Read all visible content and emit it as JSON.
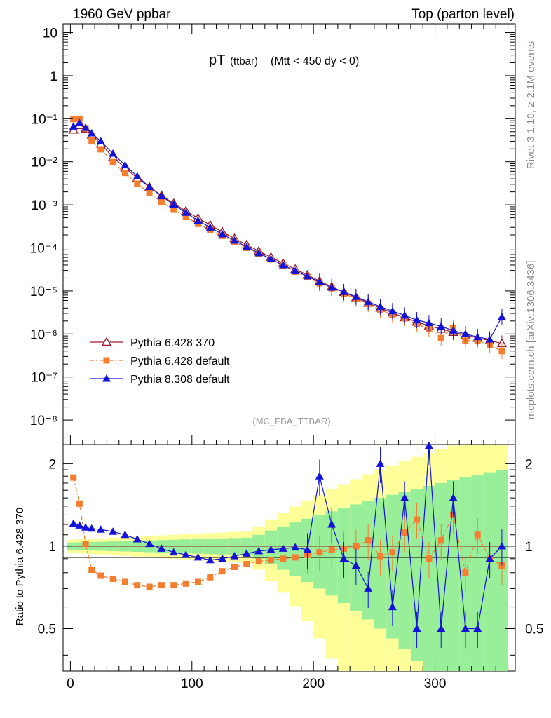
{
  "header": {
    "left": "1960 GeV ppbar",
    "right": "Top (parton level)"
  },
  "side_labels": {
    "rivet": "Rivet 3.1.10, ≥ 2.1M events",
    "mcplots": "mcplots.cern.ch [arXiv:1306.3436]"
  },
  "chart_data": {
    "type": "scatter",
    "title": {
      "main": "pT",
      "sub": "(ttbar)",
      "cut": "(Mtt < 450 dy < 0)"
    },
    "analysis_tag": "(MC_FBA_TTBAR)",
    "log_y": true,
    "grid": false,
    "legend_placement": "bottom-left",
    "xlim": [
      -6,
      366
    ],
    "ylim_main": [
      2.7e-09,
      16
    ],
    "ylim_ratio": [
      0.35,
      2.35
    ],
    "ylabel_ratio": "Ratio to Pythia 6.428 370",
    "x_ticks": [
      "0",
      "100",
      "200",
      "300"
    ],
    "y_ticks_main": [
      "10",
      "1",
      "10⁻¹",
      "10⁻²",
      "10⁻³",
      "10⁻⁴",
      "10⁻⁵",
      "10⁻⁶",
      "10⁻⁷",
      "10⁻⁸"
    ],
    "y_ticks_ratio": [
      "2",
      "1",
      "0.5"
    ],
    "series": [
      {
        "name": "Pythia 6.428 370",
        "color": "#9b1b2a",
        "marker": "open-triangle",
        "line": "solid",
        "x": [
          2.5,
          7.5,
          12.5,
          17.5,
          25,
          35,
          45,
          55,
          65,
          75,
          85,
          95,
          105,
          115,
          125,
          135,
          145,
          155,
          165,
          175,
          185,
          195,
          205,
          215,
          225,
          235,
          245,
          255,
          265,
          275,
          285,
          295,
          305,
          315,
          325,
          335,
          345,
          355
        ],
        "y": [
          0.055,
          0.07,
          0.058,
          0.042,
          0.026,
          0.0128,
          0.0072,
          0.0042,
          0.0026,
          0.00165,
          0.00108,
          0.00072,
          0.00049,
          0.00034,
          0.000235,
          0.000165,
          0.000118,
          8.4e-05,
          6.1e-05,
          4.4e-05,
          3.2e-05,
          2.35e-05,
          1.7e-05,
          1.25e-05,
          9.3e-06,
          7e-06,
          5.2e-06,
          4e-06,
          3.1e-06,
          2.4e-06,
          1.9e-06,
          1.55e-06,
          1.3e-06,
          1.1e-06,
          9.5e-07,
          8e-07,
          7e-07,
          6e-07
        ]
      },
      {
        "name": "Pythia 6.428 default",
        "color": "#f47e30",
        "marker": "square",
        "line": "dash-dot",
        "x": [
          2.5,
          7.5,
          12.5,
          17.5,
          25,
          35,
          45,
          55,
          65,
          75,
          85,
          95,
          105,
          115,
          125,
          135,
          145,
          155,
          165,
          175,
          185,
          195,
          205,
          215,
          225,
          235,
          245,
          255,
          265,
          275,
          285,
          295,
          305,
          315,
          325,
          335,
          345,
          355
        ],
        "y": [
          0.098,
          0.1,
          0.06,
          0.031,
          0.0195,
          0.0098,
          0.0055,
          0.0031,
          0.0019,
          0.00118,
          0.00077,
          0.00052,
          0.00036,
          0.00026,
          0.00019,
          0.000138,
          0.0001,
          7.4e-05,
          5.4e-05,
          3.9e-05,
          2.8e-05,
          2.1e-05,
          1.5e-05,
          1.15e-05,
          8.6e-06,
          6.6e-06,
          5e-06,
          3.6e-06,
          2.8e-06,
          2.3e-06,
          1.7e-06,
          1.3e-06,
          8e-07,
          1.4e-06,
          7e-07,
          7e-07,
          5.5e-07,
          4e-07
        ],
        "ratio": [
          1.78,
          1.43,
          1.02,
          0.82,
          0.78,
          0.76,
          0.74,
          0.72,
          0.71,
          0.72,
          0.72,
          0.73,
          0.74,
          0.77,
          0.81,
          0.84,
          0.86,
          0.88,
          0.89,
          0.9,
          0.91,
          0.93,
          0.95,
          0.97,
          0.98,
          1.0,
          1.05,
          0.92,
          0.95,
          1.12,
          1.25,
          0.9,
          1.05,
          1.3,
          0.8,
          1.1,
          0.9,
          0.85
        ]
      },
      {
        "name": "Pythia 8.308 default",
        "color": "#1212d8",
        "marker": "triangle",
        "line": "solid",
        "x": [
          2.5,
          7.5,
          12.5,
          17.5,
          25,
          35,
          45,
          55,
          65,
          75,
          85,
          95,
          105,
          115,
          125,
          135,
          145,
          155,
          165,
          175,
          185,
          195,
          205,
          215,
          225,
          235,
          245,
          255,
          265,
          275,
          285,
          295,
          305,
          315,
          325,
          335,
          345,
          355
        ],
        "y": [
          0.066,
          0.08,
          0.062,
          0.046,
          0.03,
          0.0155,
          0.0083,
          0.0046,
          0.0026,
          0.0016,
          0.00102,
          0.00066,
          0.00043,
          0.000298,
          0.000208,
          0.000148,
          0.000106,
          7.6e-05,
          5.5e-05,
          4e-05,
          2.9e-05,
          2.2e-05,
          1.6e-05,
          1.2e-05,
          9.5e-06,
          7.3e-06,
          5.6e-06,
          4.3e-06,
          3.4e-06,
          2.7e-06,
          2.1e-06,
          1.8e-06,
          1.5e-06,
          1.2e-06,
          1e-06,
          8.5e-07,
          7.5e-07,
          2.5e-06
        ],
        "ratio": [
          1.21,
          1.19,
          1.17,
          1.16,
          1.15,
          1.13,
          1.1,
          1.06,
          1.02,
          0.98,
          0.95,
          0.93,
          0.91,
          0.89,
          0.9,
          0.92,
          0.94,
          0.96,
          0.97,
          0.98,
          0.99,
          0.97,
          1.8,
          1.2,
          0.9,
          0.85,
          0.7,
          2.0,
          0.6,
          1.5,
          0.5,
          2.5,
          0.5,
          1.5,
          0.5,
          0.5,
          0.9,
          1.0
        ]
      }
    ]
  }
}
